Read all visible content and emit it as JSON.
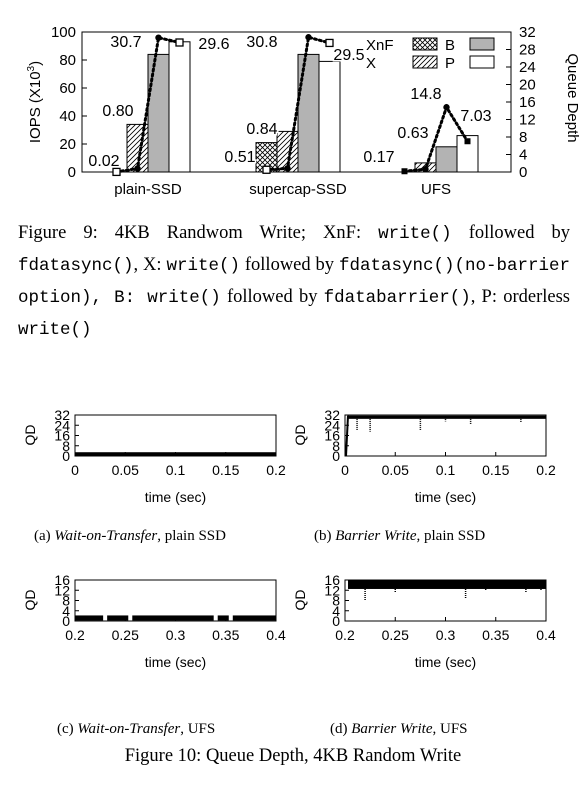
{
  "chart_data": [
    {
      "id": "fig9",
      "type": "bar",
      "categories": [
        "plain-SSD",
        "supercap-SSD",
        "UFS"
      ],
      "series": [
        {
          "name": "B",
          "values": [
            0,
            21,
            0
          ],
          "pattern": "crosshatch"
        },
        {
          "name": "P",
          "values": [
            34,
            29,
            6.5
          ],
          "pattern": "diagonal"
        },
        {
          "name": "XnF",
          "values": [
            84,
            84,
            18
          ],
          "pattern": "gray"
        },
        {
          "name": "X",
          "values": [
            93,
            79,
            26
          ],
          "pattern": "white"
        }
      ],
      "queue_depth": {
        "x_offsets": [
          -1.5,
          -0.5,
          0.5,
          1.5
        ],
        "points": [
          [
            0.02,
            0.8,
            30.7,
            29.6
          ],
          [
            0.51,
            0.84,
            30.8,
            29.5
          ],
          [
            0.17,
            0.63,
            14.8,
            7.03
          ]
        ]
      },
      "data_labels": [
        [
          "0.02",
          "0.80",
          "30.7",
          "29.6"
        ],
        [
          "0.51",
          "0.84",
          "30.8",
          "29.5"
        ],
        [
          "0.17",
          "0.63",
          "14.8",
          "7.03"
        ]
      ],
      "ylabel": "IOPS (X10",
      "ylabel_sup": "3",
      "ylabel_end": ")",
      "y2label": "Queue Depth",
      "ylim": [
        0,
        100
      ],
      "yticks": [
        "0",
        "20",
        "40",
        "60",
        "80",
        "100"
      ],
      "y2lim": [
        0,
        32
      ],
      "y2ticks": [
        "0",
        "4",
        "8",
        "12",
        "16",
        "20",
        "24",
        "28",
        "32"
      ],
      "legend": [
        "XnF",
        "X",
        "B",
        "P"
      ],
      "legend_position": "top-right"
    },
    {
      "id": "fig10a",
      "type": "line",
      "xlabel": "time (sec)",
      "ylabel": "QD",
      "xlim": [
        0,
        0.2
      ],
      "xticks": [
        "0",
        "0.05",
        "0.1",
        "0.15",
        "0.2"
      ],
      "ylim": [
        0,
        32
      ],
      "yticks": [
        "0",
        "8",
        "16",
        "24",
        "32"
      ],
      "pattern": "flat",
      "level": 1
    },
    {
      "id": "fig10b",
      "type": "line",
      "xlabel": "time (sec)",
      "ylabel": "QD",
      "xlim": [
        0,
        0.2
      ],
      "xticks": [
        "0",
        "0.05",
        "0.1",
        "0.15",
        "0.2"
      ],
      "ylim": [
        0,
        32
      ],
      "yticks": [
        "0",
        "8",
        "16",
        "24",
        "32"
      ],
      "pattern": "saturated",
      "level": 30,
      "dips": [
        [
          0.012,
          20
        ],
        [
          0.025,
          19
        ],
        [
          0.075,
          20
        ],
        [
          0.1,
          27
        ],
        [
          0.125,
          25
        ],
        [
          0.175,
          26
        ]
      ]
    },
    {
      "id": "fig10c",
      "type": "line",
      "xlabel": "time (sec)",
      "ylabel": "QD",
      "xlim": [
        0.2,
        0.4
      ],
      "xticks": [
        "0.2",
        "0.25",
        "0.3",
        "0.35",
        "0.4"
      ],
      "ylim": [
        0,
        16
      ],
      "yticks": [
        "0",
        "4",
        "8",
        "12",
        "16"
      ],
      "pattern": "flat-gaps",
      "level": 1
    },
    {
      "id": "fig10d",
      "type": "line",
      "xlabel": "time (sec)",
      "ylabel": "QD",
      "xlim": [
        0.2,
        0.4
      ],
      "xticks": [
        "0.2",
        "0.25",
        "0.3",
        "0.35",
        "0.4"
      ],
      "ylim": [
        0,
        16
      ],
      "yticks": [
        "0",
        "4",
        "8",
        "12",
        "16"
      ],
      "pattern": "band",
      "level": 14.5,
      "dips": [
        [
          0.22,
          8
        ],
        [
          0.25,
          11
        ],
        [
          0.32,
          9
        ],
        [
          0.34,
          12
        ],
        [
          0.38,
          11
        ],
        [
          0.395,
          12
        ]
      ]
    }
  ],
  "fig9_caption": {
    "prefix": "Figure 9: 4KB Randwom Write; XnF: ",
    "t1": "write()",
    "t2": " followed by ",
    "t3": "fdatasync()",
    "t4": ", X: ",
    "t5": "write()",
    "t6": " followed by ",
    "t7": "fdatasync()",
    "t8": "(no-barrier option), B: ",
    "t9": "write()",
    "t10": " followed by ",
    "t11": "fdatabarrier()",
    "t12": ", P: orderless ",
    "t13": "write()"
  },
  "subcaptions": {
    "a": {
      "label": "(a)",
      "italic": "Wait-on-Transfer",
      "rest": ", plain SSD"
    },
    "b": {
      "label": "(b)",
      "italic": "Barrier Write",
      "rest": ", plain SSD"
    },
    "c": {
      "label": "(c)",
      "italic": "Wait-on-Transfer",
      "rest": ", UFS"
    },
    "d": {
      "label": "(d)",
      "italic": "Barrier Write",
      "rest": ", UFS"
    }
  },
  "fig10_caption": "Figure 10: Queue Depth, 4KB Random Write"
}
